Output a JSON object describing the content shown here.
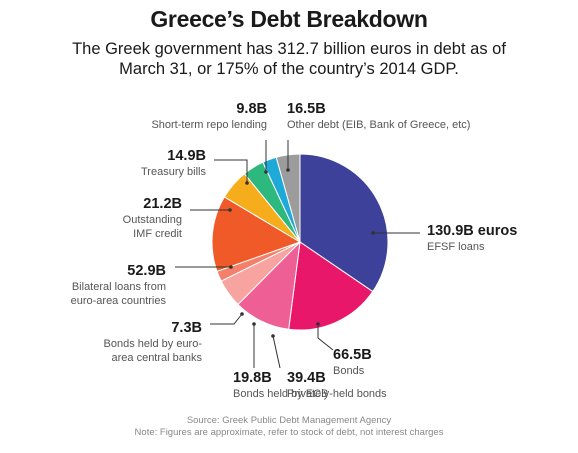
{
  "chart_data": {
    "type": "pie",
    "title": "Greece’s Debt Breakdown",
    "subtitle": "The Greek government has 312.7 billion euros in debt as of March 31, or 175% of the country’s 2014 GDP.",
    "start_angle_deg": 0,
    "direction": "clockwise",
    "slices": [
      {
        "value": 130.9,
        "value_label": "130.9B euros",
        "label": [
          "EFSF loans"
        ],
        "color": "#3d4199"
      },
      {
        "value": 66.5,
        "value_label": "66.5B",
        "label": [
          "Bonds"
        ],
        "color": "#e8176a"
      },
      {
        "value": 39.4,
        "value_label": "39.4B",
        "label": [
          "Privately-held bonds"
        ],
        "color": "#ee5f95"
      },
      {
        "value": 19.8,
        "value_label": "19.8B",
        "label": [
          "Bonds held by ECB"
        ],
        "color": "#f7a4a0"
      },
      {
        "value": 7.3,
        "value_label": "7.3B",
        "label": [
          "Bonds held by euro-",
          "area central banks"
        ],
        "color": "#f47f6a"
      },
      {
        "value": 52.9,
        "value_label": "52.9B",
        "label": [
          "Bilateral loans from",
          "euro-area countries"
        ],
        "color": "#f05a28"
      },
      {
        "value": 21.2,
        "value_label": "21.2B",
        "label": [
          "Outstanding",
          "IMF credit"
        ],
        "color": "#f5ad1c"
      },
      {
        "value": 14.9,
        "value_label": "14.9B",
        "label": [
          "Treasury bills"
        ],
        "color": "#2db87d"
      },
      {
        "value": 9.8,
        "value_label": "9.8B",
        "label": [
          "Short-term repo lending"
        ],
        "color": "#1fa9d9"
      },
      {
        "value": 16.5,
        "value_label": "16.5B",
        "label": [
          "Other debt (EIB, Bank of Greece, etc)"
        ],
        "color": "#9c9c9c"
      }
    ]
  },
  "footer": {
    "source": "Source: Greek Public Debt Management Agency",
    "note": "Note: Figures are approximate, refer to stock of debt, not interest charges"
  }
}
